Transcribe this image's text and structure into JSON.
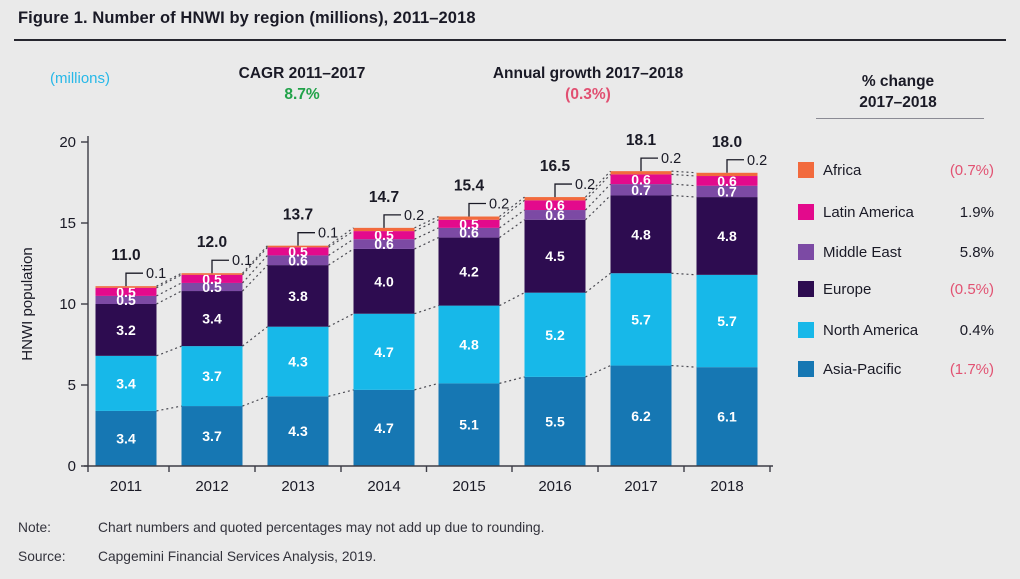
{
  "header": {
    "title": "Figure 1. Number of HNWI by region (millions), 2011–2018"
  },
  "subheader": {
    "unit_label": "(millions)",
    "cagr_label": "CAGR 2011–2017",
    "cagr_value": "8.7%",
    "growth_label": "Annual growth 2017–2018",
    "growth_value": "(0.3%)"
  },
  "legend": {
    "title_line1": "% change",
    "title_line2": "2017–2018"
  },
  "chart_data": {
    "type": "bar",
    "stacked": true,
    "title": "Number of HNWI by region (millions), 2011–2018",
    "xlabel": "",
    "ylabel": "HNWI population",
    "ylim": [
      0,
      20
    ],
    "yticks": [
      0,
      5,
      10,
      15,
      20
    ],
    "grid": false,
    "legend_position": "right",
    "categories": [
      "2011",
      "2012",
      "2013",
      "2014",
      "2015",
      "2016",
      "2017",
      "2018"
    ],
    "totals": [
      "11.0",
      "12.0",
      "13.7",
      "14.7",
      "15.4",
      "16.5",
      "18.1",
      "18.0"
    ],
    "series": [
      {
        "name": "Asia-Pacific",
        "color": "#1677B3",
        "values": [
          3.4,
          3.7,
          4.3,
          4.7,
          5.1,
          5.5,
          6.2,
          6.1
        ],
        "change": "(1.7%)",
        "change_negative": true,
        "callout": false
      },
      {
        "name": "North America",
        "color": "#17B8E9",
        "values": [
          3.4,
          3.7,
          4.3,
          4.7,
          4.8,
          5.2,
          5.7,
          5.7
        ],
        "change": "0.4%",
        "change_negative": false,
        "callout": false
      },
      {
        "name": "Europe",
        "color": "#2D0C50",
        "values": [
          3.2,
          3.4,
          3.8,
          4.0,
          4.2,
          4.5,
          4.8,
          4.8
        ],
        "change": "(0.5%)",
        "change_negative": true,
        "callout": false
      },
      {
        "name": "Middle East",
        "color": "#7C4AA4",
        "values": [
          0.5,
          0.5,
          0.6,
          0.6,
          0.6,
          0.6,
          0.7,
          0.7
        ],
        "change": "5.8%",
        "change_negative": false,
        "callout": false
      },
      {
        "name": "Latin America",
        "color": "#E30A8C",
        "values": [
          0.5,
          0.5,
          0.5,
          0.5,
          0.5,
          0.6,
          0.6,
          0.6
        ],
        "change": "1.9%",
        "change_negative": false,
        "callout": false
      },
      {
        "name": "Africa",
        "color": "#F26A3D",
        "values": [
          0.1,
          0.1,
          0.1,
          0.2,
          0.2,
          0.2,
          0.2,
          0.2
        ],
        "change": "(0.7%)",
        "change_negative": true,
        "callout": true
      }
    ]
  },
  "notes": {
    "note_label": "Note:",
    "note_text": "Chart numbers and quoted percentages may not add up due to rounding.",
    "source_label": "Source:",
    "source_text": "Capgemini Financial Services Analysis, 2019."
  },
  "colors": {
    "background": "#EAEAEA",
    "text": "#1A1A26",
    "negative_value": "#E25272",
    "cagr_green": "#21A249",
    "unit_cyan": "#27B8E8",
    "axis": "#3C3C46",
    "connector": "#4A4A52"
  }
}
